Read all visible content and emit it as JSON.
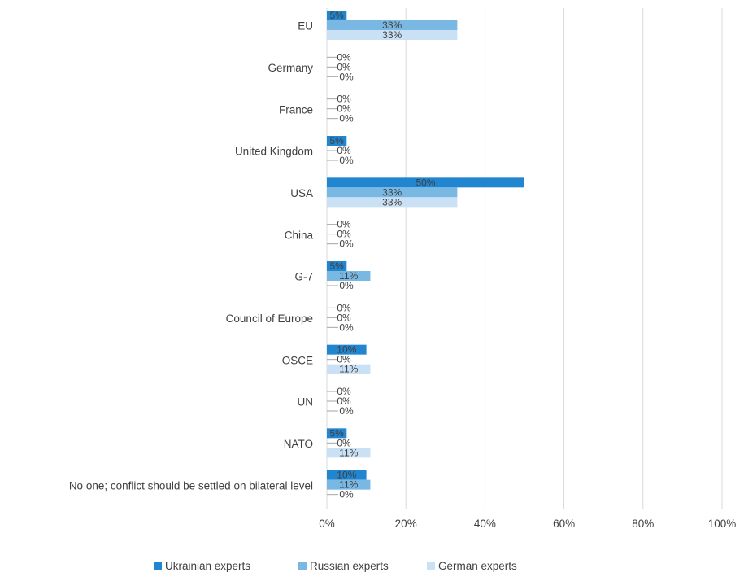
{
  "chart_data": {
    "type": "bar",
    "orientation": "horizontal",
    "categories": [
      "EU",
      "Germany",
      "France",
      "United Kingdom",
      "USA",
      "China",
      "G-7",
      "Council of Europe",
      "OSCE",
      "UN",
      "NATO",
      "No one; conflict should be settled on bilateral level"
    ],
    "series": [
      {
        "name": "Ukrainian experts",
        "color": "#2185d0",
        "values": [
          5,
          0,
          0,
          5,
          50,
          0,
          5,
          0,
          10,
          0,
          5,
          10
        ],
        "labels": [
          "5%",
          "0%",
          "0%",
          "5%",
          "50%",
          "0%",
          "5%",
          "0%",
          "10%",
          "0%",
          "5%",
          "10%"
        ]
      },
      {
        "name": "Russian experts",
        "color": "#7ab8e4",
        "values": [
          33,
          0,
          0,
          0,
          33,
          0,
          11,
          0,
          0,
          0,
          0,
          11
        ],
        "labels": [
          "33%",
          "0%",
          "0%",
          "0%",
          "33%",
          "0%",
          "11%",
          "0%",
          "0%",
          "0%",
          "0%",
          "11%"
        ]
      },
      {
        "name": "German experts",
        "color": "#c9e0f5",
        "values": [
          33,
          0,
          0,
          0,
          33,
          0,
          0,
          0,
          11,
          0,
          11,
          0
        ],
        "labels": [
          "33%",
          "0%",
          "0%",
          "0%",
          "33%",
          "0%",
          "0%",
          "0%",
          "11%",
          "0%",
          "11%",
          "0%"
        ]
      }
    ],
    "xlim": [
      0,
      100
    ],
    "xticks": [
      "0%",
      "20%",
      "40%",
      "60%",
      "80%",
      "100%"
    ],
    "grid": true,
    "legend_position": "bottom"
  }
}
